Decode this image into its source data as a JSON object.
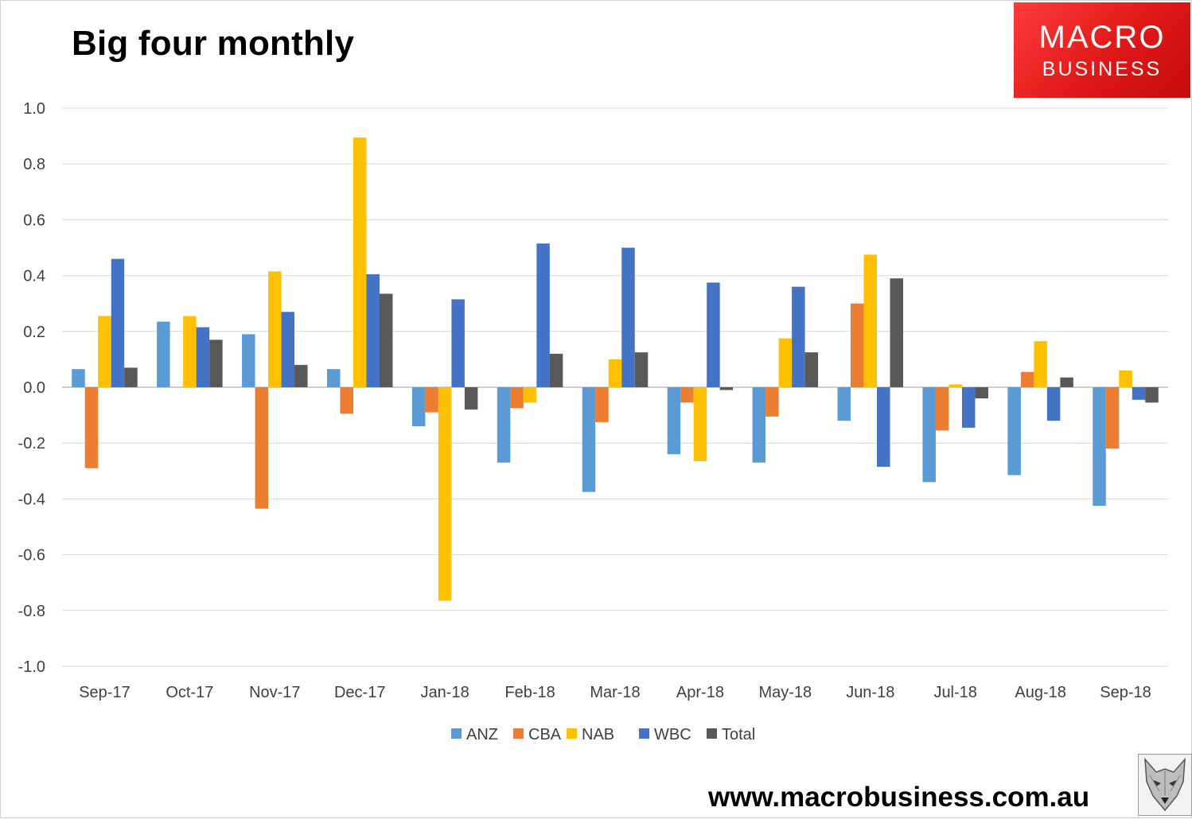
{
  "header": {
    "title": "Big four monthly",
    "logo_line1": "MACRO",
    "logo_line2": "BUSINESS"
  },
  "footer": {
    "url": "www.macrobusiness.com.au",
    "mascot": "wolf-logo"
  },
  "colors": {
    "ANZ": "#5b9bd5",
    "CBA": "#ed7d31",
    "NAB": "#ffc000",
    "WBC": "#4472c4",
    "Total": "#595959",
    "grid": "#d9d9d9",
    "logo_red": "#e01818"
  },
  "chart_data": {
    "type": "bar",
    "title": "Big four monthly",
    "xlabel": "",
    "ylabel": "",
    "ylim": [
      -1.0,
      1.0
    ],
    "yticks": [
      1.0,
      0.8,
      0.6,
      0.4,
      0.2,
      0.0,
      -0.2,
      -0.4,
      -0.6,
      -0.8,
      -1.0
    ],
    "ytick_labels": [
      "1.0",
      "0.8",
      "0.6",
      "0.4",
      "0.2",
      "0.0",
      "-0.2",
      "-0.4",
      "-0.6",
      "-0.8",
      "-1.0"
    ],
    "grid": true,
    "legend_position": "bottom-center",
    "categories": [
      "Sep-17",
      "Oct-17",
      "Nov-17",
      "Dec-17",
      "Jan-18",
      "Feb-18",
      "Mar-18",
      "Apr-18",
      "May-18",
      "Jun-18",
      "Jul-18",
      "Aug-18",
      "Sep-18"
    ],
    "series": [
      {
        "name": "ANZ",
        "values": [
          0.065,
          0.235,
          0.19,
          0.065,
          -0.14,
          -0.27,
          -0.375,
          -0.24,
          -0.27,
          -0.12,
          -0.34,
          -0.315,
          -0.425
        ]
      },
      {
        "name": "CBA",
        "values": [
          -0.29,
          0.0,
          -0.435,
          -0.095,
          -0.09,
          -0.075,
          -0.125,
          -0.055,
          -0.105,
          0.3,
          -0.155,
          0.055,
          -0.22
        ]
      },
      {
        "name": "NAB",
        "values": [
          0.255,
          0.255,
          0.415,
          0.895,
          -0.765,
          -0.055,
          0.1,
          -0.265,
          0.175,
          0.475,
          0.01,
          0.165,
          0.06
        ]
      },
      {
        "name": "WBC",
        "values": [
          0.46,
          0.215,
          0.27,
          0.405,
          0.315,
          0.515,
          0.5,
          0.375,
          0.36,
          -0.285,
          -0.145,
          -0.12,
          -0.045
        ]
      },
      {
        "name": "Total",
        "values": [
          0.07,
          0.17,
          0.08,
          0.335,
          -0.08,
          0.12,
          0.125,
          -0.01,
          0.125,
          0.39,
          -0.04,
          0.035,
          -0.055
        ]
      }
    ]
  }
}
